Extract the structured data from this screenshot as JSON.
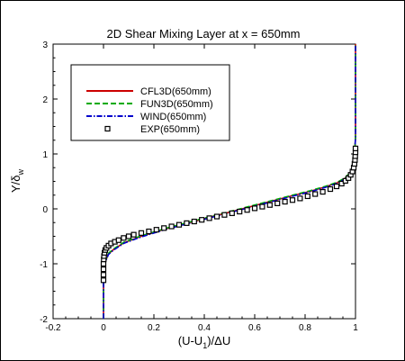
{
  "chart_data": {
    "type": "line",
    "title": "2D Shear Mixing Layer at x = 650mm",
    "xlabel": "(U-U",
    "xlabel_sub": "1",
    "xlabel_tail": ")/ΔU",
    "ylabel": "Y/δ",
    "ylabel_sub": "w",
    "xlim": [
      -0.2,
      1.0
    ],
    "ylim": [
      -2,
      3
    ],
    "xticks": [
      -0.2,
      0,
      0.2,
      0.4,
      0.6,
      0.8,
      1
    ],
    "xtick_labels": [
      "-0.2",
      "0",
      "0.2",
      "0.4",
      "0.6",
      "0.8",
      "1"
    ],
    "yticks": [
      -2,
      -1,
      0,
      1,
      2,
      3
    ],
    "ytick_labels": [
      "-2",
      "-1",
      "0",
      "1",
      "2",
      "3"
    ],
    "grid": false,
    "legend_position": "top-left",
    "series": [
      {
        "name": "CFL3D(650mm)",
        "style": "solid",
        "color": "#cc0000",
        "x": [
          0.0,
          0.0,
          0.002,
          0.008,
          0.02,
          0.04,
          0.08,
          0.15,
          0.25,
          0.35,
          0.45,
          0.55,
          0.65,
          0.75,
          0.82,
          0.88,
          0.93,
          0.96,
          0.98,
          0.99,
          0.996,
          1.0,
          1.0
        ],
        "y": [
          -2.0,
          -1.3,
          -1.1,
          -0.95,
          -0.82,
          -0.74,
          -0.62,
          -0.5,
          -0.36,
          -0.24,
          -0.12,
          0.0,
          0.12,
          0.24,
          0.32,
          0.4,
          0.48,
          0.56,
          0.66,
          0.78,
          0.95,
          1.3,
          3.0
        ]
      },
      {
        "name": "FUN3D(650mm)",
        "style": "dashed",
        "color": "#00aa00",
        "x": [
          0.0,
          0.0,
          0.002,
          0.008,
          0.02,
          0.04,
          0.08,
          0.15,
          0.25,
          0.35,
          0.45,
          0.55,
          0.65,
          0.75,
          0.82,
          0.88,
          0.93,
          0.96,
          0.98,
          0.99,
          0.996,
          1.0,
          1.0
        ],
        "y": [
          -2.0,
          -1.3,
          -1.1,
          -0.94,
          -0.81,
          -0.73,
          -0.61,
          -0.49,
          -0.35,
          -0.23,
          -0.11,
          0.01,
          0.13,
          0.25,
          0.33,
          0.41,
          0.49,
          0.57,
          0.67,
          0.79,
          0.96,
          1.3,
          3.0
        ]
      },
      {
        "name": "WIND(650mm)",
        "style": "dashdot",
        "color": "#0000cc",
        "x": [
          0.0,
          0.0,
          0.002,
          0.008,
          0.02,
          0.04,
          0.08,
          0.15,
          0.25,
          0.35,
          0.45,
          0.55,
          0.65,
          0.75,
          0.82,
          0.88,
          0.93,
          0.96,
          0.98,
          0.99,
          0.996,
          1.0,
          1.0
        ],
        "y": [
          -2.0,
          -1.3,
          -1.1,
          -0.96,
          -0.83,
          -0.75,
          -0.63,
          -0.51,
          -0.37,
          -0.25,
          -0.13,
          -0.01,
          0.11,
          0.23,
          0.31,
          0.39,
          0.47,
          0.55,
          0.65,
          0.77,
          0.94,
          1.3,
          3.0
        ]
      },
      {
        "name": "EXP(650mm)",
        "style": "markers",
        "color": "#000000",
        "x": [
          0.0,
          0.0,
          0.0,
          0.0,
          0.001,
          0.002,
          0.004,
          0.007,
          0.012,
          0.02,
          0.03,
          0.045,
          0.06,
          0.08,
          0.1,
          0.12,
          0.15,
          0.18,
          0.21,
          0.24,
          0.27,
          0.3,
          0.33,
          0.36,
          0.39,
          0.42,
          0.45,
          0.48,
          0.51,
          0.54,
          0.57,
          0.6,
          0.63,
          0.66,
          0.69,
          0.72,
          0.75,
          0.78,
          0.81,
          0.84,
          0.87,
          0.9,
          0.925,
          0.945,
          0.96,
          0.972,
          0.981,
          0.988,
          0.993,
          0.996,
          0.998,
          0.999,
          1.0,
          1.0
        ],
        "y": [
          -1.3,
          -1.2,
          -1.1,
          -1.0,
          -0.92,
          -0.86,
          -0.8,
          -0.75,
          -0.71,
          -0.67,
          -0.63,
          -0.6,
          -0.57,
          -0.53,
          -0.5,
          -0.47,
          -0.44,
          -0.41,
          -0.38,
          -0.35,
          -0.32,
          -0.29,
          -0.26,
          -0.23,
          -0.2,
          -0.17,
          -0.14,
          -0.11,
          -0.08,
          -0.05,
          -0.02,
          0.01,
          0.04,
          0.07,
          0.1,
          0.13,
          0.16,
          0.19,
          0.23,
          0.27,
          0.31,
          0.36,
          0.41,
          0.46,
          0.51,
          0.56,
          0.62,
          0.68,
          0.75,
          0.82,
          0.89,
          0.96,
          1.03,
          1.1
        ]
      }
    ]
  }
}
